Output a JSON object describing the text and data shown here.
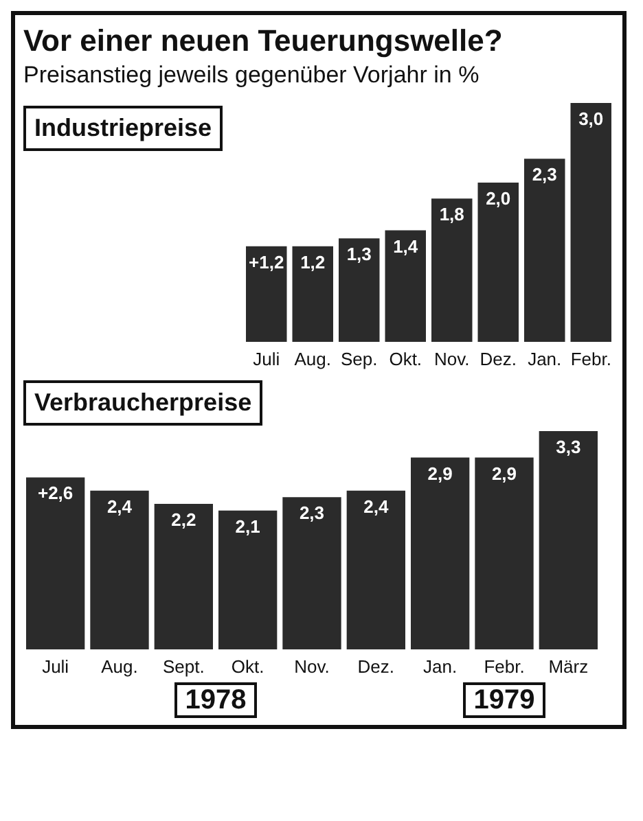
{
  "chart_data": [
    {
      "type": "bar",
      "title": "Vor einer neuen Teuerungswelle?",
      "subtitle": "Preisanstieg jeweils gegenüber Vorjahr in %",
      "categories": [
        "Juli",
        "Aug.",
        "Sep.",
        "Okt.",
        "Nov.",
        "Dez.",
        "Jan.",
        "Febr."
      ],
      "series": [
        {
          "name": "Industriepreise",
          "color": "#2b2b2b",
          "values": [
            1.2,
            1.2,
            1.3,
            1.4,
            1.8,
            2.0,
            2.3,
            3.0
          ],
          "value_labels": [
            "+1,2",
            "1,2",
            "1,3",
            "1,4",
            "1,8",
            "2,0",
            "2,3",
            "3,0"
          ]
        }
      ]
    },
    {
      "type": "bar",
      "categories": [
        "Juli",
        "Aug.",
        "Sept.",
        "Okt.",
        "Nov.",
        "Dez.",
        "Jan.",
        "Febr.",
        "März"
      ],
      "series": [
        {
          "name": "Verbraucherpreise",
          "color": "#2b2b2b",
          "values": [
            2.6,
            2.4,
            2.2,
            2.1,
            2.3,
            2.4,
            2.9,
            2.9,
            3.3
          ],
          "value_labels": [
            "+2,6",
            "2,4",
            "2,2",
            "2,1",
            "2,3",
            "2,4",
            "2,9",
            "2,9",
            "3,3"
          ]
        }
      ],
      "annotations": [
        "1978",
        "1979"
      ]
    }
  ]
}
